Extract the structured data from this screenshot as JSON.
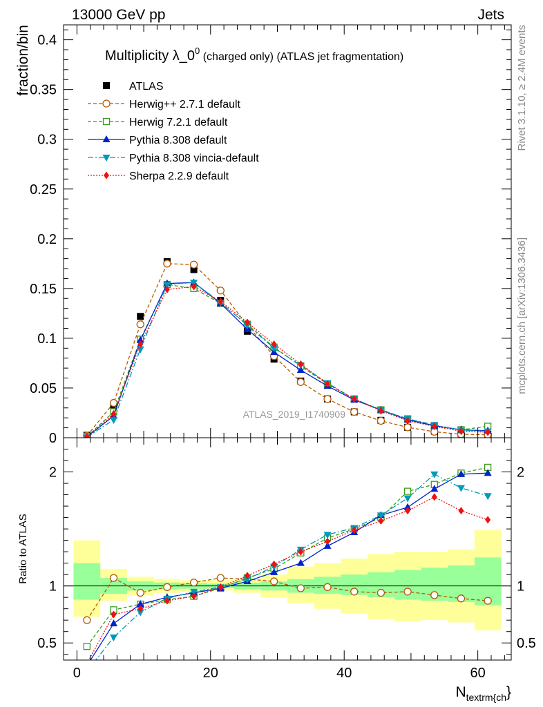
{
  "header": {
    "left": "13000 GeV pp",
    "right": "Jets",
    "side_top": "Rivet 3.1.10, ≥ 2.4M events",
    "side_bottom": "mcplots.cern.ch [arXiv:1306.3436]"
  },
  "chart_data": [
    {
      "type": "line",
      "panel": "main",
      "title_main": "Multiplicity λ_0",
      "title_sup": "0",
      "title_rest": " (charged only) (ATLAS jet fragmentation)",
      "ylabel": "fraction/bin",
      "watermark": "ATLAS_2019_I1740909",
      "xlim": [
        -2,
        65
      ],
      "ylim": [
        0,
        0.415
      ],
      "yticks": [
        0,
        0.05,
        0.1,
        0.15,
        0.2,
        0.25,
        0.3,
        0.35,
        0.4
      ],
      "ytick_labels": [
        "0",
        "0.05",
        "0.1",
        "0.15",
        "0.2",
        "0.25",
        "0.3",
        "0.35",
        "0.4"
      ],
      "x": [
        1.5,
        5.5,
        9.5,
        13.5,
        17.5,
        21.5,
        25.5,
        29.5,
        33.5,
        37.5,
        41.5,
        45.5,
        49.5,
        53.5,
        57.5,
        61.5
      ],
      "series": [
        {
          "name": "ATLAS",
          "color": "#000000",
          "marker": "square-filled",
          "dash": "none",
          "values": [
            0.0025,
            0.033,
            0.122,
            0.177,
            0.169,
            0.138,
            0.107,
            0.079,
            0.057,
            0.039,
            0.026,
            0.0175,
            0.0105,
            0.0065,
            0.004,
            0.0035
          ]
        },
        {
          "name": "Herwig++ 2.7.1 default",
          "color": "#b35900",
          "marker": "circle-open",
          "dash": "5,3",
          "values": [
            0.002,
            0.035,
            0.114,
            0.175,
            0.174,
            0.148,
            0.113,
            0.082,
            0.056,
            0.039,
            0.026,
            0.017,
            0.0105,
            0.006,
            0.0035,
            0.003
          ]
        },
        {
          "name": "Herwig 7.2.1 default",
          "color": "#3a9a1a",
          "marker": "square-open",
          "dash": "5,3",
          "values": [
            0.0012,
            0.026,
            0.099,
            0.154,
            0.15,
            0.135,
            0.114,
            0.091,
            0.072,
            0.054,
            0.039,
            0.028,
            0.019,
            0.012,
            0.008,
            0.0115
          ]
        },
        {
          "name": "Pythia 8.308 default",
          "color": "#0022cc",
          "marker": "triangle-up-filled",
          "dash": "none",
          "values": [
            0.0008,
            0.022,
            0.098,
            0.155,
            0.156,
            0.135,
            0.109,
            0.086,
            0.068,
            0.052,
            0.038,
            0.028,
            0.018,
            0.012,
            0.008,
            0.007
          ]
        },
        {
          "name": "Pythia 8.308 vincia-default",
          "color": "#0099bb",
          "marker": "triangle-down-filled",
          "dash": "8,3,2,3",
          "values": [
            0.0006,
            0.018,
            0.089,
            0.154,
            0.156,
            0.136,
            0.113,
            0.09,
            0.073,
            0.055,
            0.039,
            0.028,
            0.019,
            0.013,
            0.0075,
            0.0065
          ]
        },
        {
          "name": "Sherpa 2.2.9 default",
          "color": "#ee1111",
          "marker": "diamond-filled",
          "dash": "2,2",
          "values": [
            0.0008,
            0.024,
            0.094,
            0.149,
            0.152,
            0.137,
            0.116,
            0.094,
            0.074,
            0.054,
            0.039,
            0.027,
            0.017,
            0.0115,
            0.0065,
            0.0055
          ]
        }
      ]
    },
    {
      "type": "line",
      "panel": "ratio",
      "ylabel": "Ratio to ATLAS",
      "xlabel": "N",
      "xlabel_sub": "textrm{ch",
      "xlabel_end": "}",
      "xlim": [
        -2,
        65
      ],
      "ylim": [
        0.35,
        2.3
      ],
      "yticks": [
        0.5,
        1,
        2
      ],
      "ytick_labels": [
        "0.5",
        "1",
        "2"
      ],
      "xticks": [
        0,
        20,
        40,
        60
      ],
      "xtick_labels": [
        "0",
        "20",
        "40",
        "60"
      ],
      "x": [
        1.5,
        5.5,
        9.5,
        13.5,
        17.5,
        21.5,
        25.5,
        29.5,
        33.5,
        37.5,
        41.5,
        45.5,
        49.5,
        53.5,
        57.5,
        61.5
      ],
      "bins": [
        -0.5,
        3.5,
        7.5,
        11.5,
        15.5,
        19.5,
        23.5,
        27.5,
        31.5,
        35.5,
        39.5,
        43.5,
        47.5,
        51.5,
        55.5,
        59.5,
        63.5
      ],
      "band_outer": [
        [
          0.73,
          1.4
        ],
        [
          0.87,
          1.15
        ],
        [
          0.92,
          1.08
        ],
        [
          0.94,
          1.06
        ],
        [
          0.95,
          1.05
        ],
        [
          0.96,
          1.05
        ],
        [
          0.94,
          1.06
        ],
        [
          0.9,
          1.1
        ],
        [
          0.85,
          1.17
        ],
        [
          0.8,
          1.2
        ],
        [
          0.76,
          1.24
        ],
        [
          0.71,
          1.28
        ],
        [
          0.69,
          1.3
        ],
        [
          0.7,
          1.3
        ],
        [
          0.68,
          1.32
        ],
        [
          0.61,
          1.49
        ]
      ],
      "band_inner": [
        [
          0.88,
          1.2
        ],
        [
          0.93,
          1.07
        ],
        [
          0.96,
          1.04
        ],
        [
          0.97,
          1.03
        ],
        [
          0.975,
          1.025
        ],
        [
          0.98,
          1.02
        ],
        [
          0.97,
          1.03
        ],
        [
          0.96,
          1.04
        ],
        [
          0.94,
          1.06
        ],
        [
          0.93,
          1.08
        ],
        [
          0.92,
          1.1
        ],
        [
          0.9,
          1.12
        ],
        [
          0.88,
          1.14
        ],
        [
          0.87,
          1.16
        ],
        [
          0.86,
          1.18
        ],
        [
          0.83,
          1.25
        ]
      ],
      "series": [
        {
          "name": "Herwig++ 2.7.1 default",
          "color": "#b35900",
          "marker": "circle-open",
          "dash": "5,3",
          "values": [
            0.7,
            1.07,
            0.94,
            0.99,
            1.03,
            1.07,
            1.06,
            1.04,
            0.98,
            0.99,
            0.95,
            0.94,
            0.95,
            0.92,
            0.89,
            0.87
          ]
        },
        {
          "name": "Herwig 7.2.1 default",
          "color": "#3a9a1a",
          "marker": "square-open",
          "dash": "5,3",
          "values": [
            0.47,
            0.79,
            0.84,
            0.88,
            0.91,
            0.98,
            1.07,
            1.15,
            1.29,
            1.42,
            1.5,
            1.6,
            1.83,
            1.89,
            1.99,
            2.04
          ]
        },
        {
          "name": "Pythia 8.308 default",
          "color": "#0022cc",
          "marker": "triangle-up-filled",
          "dash": "none",
          "values": [
            0.3,
            0.67,
            0.84,
            0.9,
            0.94,
            0.98,
            1.04,
            1.12,
            1.2,
            1.35,
            1.47,
            1.62,
            1.69,
            1.85,
            1.98,
            1.99
          ]
        },
        {
          "name": "Pythia 8.308 vincia-default",
          "color": "#0099bb",
          "marker": "triangle-down-filled",
          "dash": "8,3,2,3",
          "values": [
            0.25,
            0.55,
            0.77,
            0.89,
            0.95,
            0.99,
            1.06,
            1.17,
            1.32,
            1.45,
            1.51,
            1.62,
            1.77,
            1.98,
            1.86,
            1.79
          ]
        },
        {
          "name": "Sherpa 2.2.9 default",
          "color": "#ee1111",
          "marker": "diamond-filled",
          "dash": "2,2",
          "values": [
            0.32,
            0.75,
            0.8,
            0.87,
            0.91,
            0.99,
            1.09,
            1.19,
            1.3,
            1.39,
            1.49,
            1.57,
            1.66,
            1.78,
            1.66,
            1.58
          ]
        }
      ]
    }
  ]
}
